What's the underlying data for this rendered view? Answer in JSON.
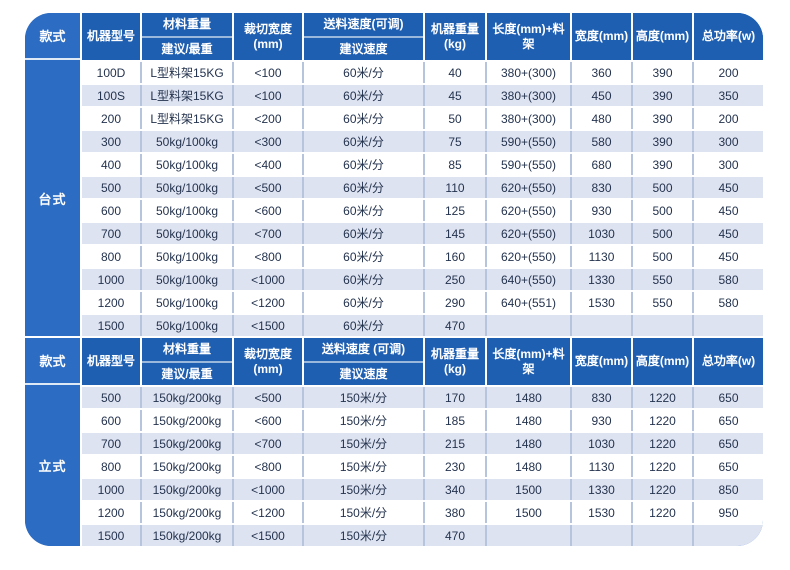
{
  "colors": {
    "panel_blue": "#2d6cc3",
    "header_blue": "#1f5fb2",
    "row_shaded": "#dee3f1",
    "row_white": "#ffffff",
    "cell_border": "#b7c4de",
    "header_text": "#ffffff",
    "body_text": "#24334e"
  },
  "sections": [
    {
      "style_label": "台式",
      "header": {
        "style": "款式",
        "model": "机器型号",
        "material_weight": "材料重量",
        "material_weight_sub": "建议/最重",
        "cut_width_l1": "裁切宽度",
        "cut_width_l2": "(mm)",
        "feed_speed": "送料速度(可调)",
        "feed_speed_sub": "建议速度",
        "machine_weight_l1": "机器重量",
        "machine_weight_l2": "(kg)",
        "length_rack": "长度(mm)+料架",
        "width": "宽度(mm)",
        "height": "高度(mm)",
        "power": "总功率(w)"
      },
      "rows": [
        [
          "100D",
          "L型料架15KG",
          "<100",
          "60米/分",
          "40",
          "380+(300)",
          "360",
          "390",
          "200"
        ],
        [
          "100S",
          "L型料架15KG",
          "<100",
          "60米/分",
          "45",
          "380+(300)",
          "450",
          "390",
          "350"
        ],
        [
          "200",
          "L型料架15KG",
          "<200",
          "60米/分",
          "50",
          "380+(300)",
          "480",
          "390",
          "200"
        ],
        [
          "300",
          "50kg/100kg",
          "<300",
          "60米/分",
          "75",
          "590+(550)",
          "580",
          "390",
          "300"
        ],
        [
          "400",
          "50kg/100kg",
          "<400",
          "60米/分",
          "85",
          "590+(550)",
          "680",
          "390",
          "300"
        ],
        [
          "500",
          "50kg/100kg",
          "<500",
          "60米/分",
          "110",
          "620+(550)",
          "830",
          "500",
          "450"
        ],
        [
          "600",
          "50kg/100kg",
          "<600",
          "60米/分",
          "125",
          "620+(550)",
          "930",
          "500",
          "450"
        ],
        [
          "700",
          "50kg/100kg",
          "<700",
          "60米/分",
          "145",
          "620+(550)",
          "1030",
          "500",
          "450"
        ],
        [
          "800",
          "50kg/100kg",
          "<800",
          "60米/分",
          "160",
          "620+(550)",
          "1130",
          "500",
          "450"
        ],
        [
          "1000",
          "50kg/100kg",
          "<1000",
          "60米/分",
          "250",
          "640+(550)",
          "1330",
          "550",
          "580"
        ],
        [
          "1200",
          "50kg/100kg",
          "<1200",
          "60米/分",
          "290",
          "640+(551)",
          "1530",
          "550",
          "580"
        ],
        [
          "1500",
          "50kg/100kg",
          "<1500",
          "60米/分",
          "470",
          "",
          "",
          "",
          ""
        ]
      ]
    },
    {
      "style_label": "立式",
      "header": {
        "style": "款式",
        "model": "机器型号",
        "material_weight": "材料重量",
        "material_weight_sub": "建议/最重",
        "cut_width_l1": "裁切宽度",
        "cut_width_l2": "(mm)",
        "feed_speed": "送料速度 (可调)",
        "feed_speed_sub": "建议速度",
        "machine_weight_l1": "机器重量",
        "machine_weight_l2": "(kg)",
        "length_rack": "长度(mm)+料架",
        "width": "宽度(mm)",
        "height": "高度(mm)",
        "power": "总功率(w)"
      },
      "rows": [
        [
          "500",
          "150kg/200kg",
          "<500",
          "150米/分",
          "170",
          "1480",
          "830",
          "1220",
          "650"
        ],
        [
          "600",
          "150kg/200kg",
          "<600",
          "150米/分",
          "185",
          "1480",
          "930",
          "1220",
          "650"
        ],
        [
          "700",
          "150kg/200kg",
          "<700",
          "150米/分",
          "215",
          "1480",
          "1030",
          "1220",
          "650"
        ],
        [
          "800",
          "150kg/200kg",
          "<800",
          "150米/分",
          "230",
          "1480",
          "1130",
          "1220",
          "650"
        ],
        [
          "1000",
          "150kg/200kg",
          "<1000",
          "150米/分",
          "340",
          "1500",
          "1330",
          "1220",
          "850"
        ],
        [
          "1200",
          "150kg/200kg",
          "<1200",
          "150米/分",
          "380",
          "1500",
          "1530",
          "1220",
          "950"
        ],
        [
          "1500",
          "150kg/200kg",
          "<1500",
          "150米/分",
          "470",
          "",
          "",
          "",
          ""
        ]
      ]
    }
  ]
}
